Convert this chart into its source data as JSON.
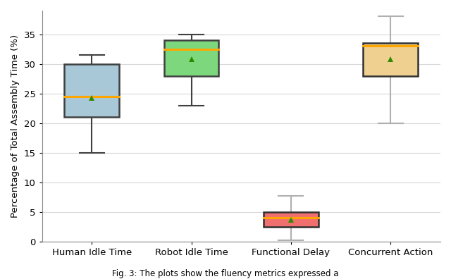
{
  "categories": [
    "Human Idle Time",
    "Robot Idle Time",
    "Functional Delay",
    "Concurrent Action"
  ],
  "box_data": [
    {
      "whislo": 15.0,
      "q1": 21.0,
      "med": 24.5,
      "q3": 30.0,
      "whishi": 31.5,
      "mean": 24.3
    },
    {
      "whislo": 23.0,
      "q1": 28.0,
      "med": 32.5,
      "q3": 34.0,
      "whishi": 35.0,
      "mean": 30.8
    },
    {
      "whislo": 0.2,
      "q1": 2.5,
      "med": 4.0,
      "q3": 5.0,
      "whishi": 7.8,
      "mean": 3.7
    },
    {
      "whislo": 20.0,
      "q1": 28.0,
      "med": 33.0,
      "q3": 33.5,
      "whishi": 38.0,
      "mean": 30.8
    }
  ],
  "box_colors": [
    "#a8c8d8",
    "#7dd87d",
    "#f07070",
    "#f0d090"
  ],
  "median_color": "#FFA500",
  "mean_color": "#2e8b00",
  "whisker_colors": [
    "#404040",
    "#404040",
    "#b0b0b0",
    "#b0b0b0"
  ],
  "box_edge_colors": [
    "#404040",
    "#404040",
    "#303030",
    "#303030"
  ],
  "ylabel": "Percentage of Total Assembly Time (%)",
  "caption": "Fig. 3: The plots show the fluency metrics expressed a",
  "ylim": [
    0,
    39
  ],
  "yticks": [
    0,
    5,
    10,
    15,
    20,
    25,
    30,
    35
  ],
  "figsize": [
    6.4,
    3.96
  ],
  "dpi": 100,
  "background_color": "#ffffff",
  "grid_color": "#d8d8d8"
}
